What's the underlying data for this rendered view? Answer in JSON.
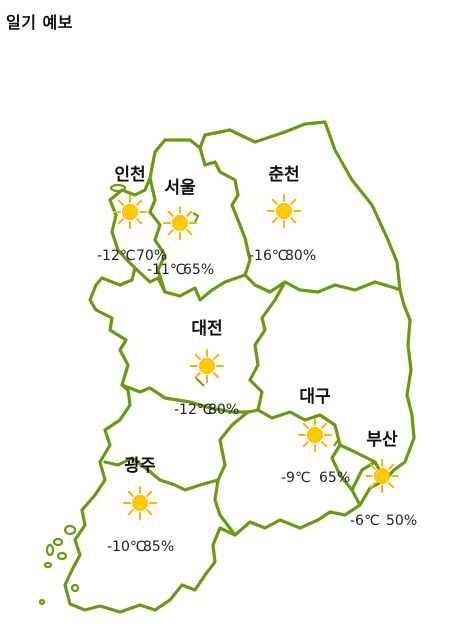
{
  "title": "일기 예보",
  "colors": {
    "border": "#6a9a10",
    "sun": "#ffcc00",
    "sun_ray": "#ffb300"
  },
  "regions": [
    {
      "id": "incheon",
      "city": "인천",
      "temp": "-12℃",
      "humidity": "70%",
      "weather_icon": "sun-icon"
    },
    {
      "id": "seoul",
      "city": "서울",
      "temp": "-11℃",
      "humidity": "65%",
      "weather_icon": "sun-icon"
    },
    {
      "id": "chuncheon",
      "city": "춘천",
      "temp": "-16℃",
      "humidity": "80%",
      "weather_icon": "sun-icon"
    },
    {
      "id": "daejeon",
      "city": "대전",
      "temp": "-12℃",
      "humidity": "80%",
      "weather_icon": "sun-icon"
    },
    {
      "id": "daegu",
      "city": "대구",
      "temp": "-9℃",
      "humidity": "65%",
      "weather_icon": "sun-icon"
    },
    {
      "id": "busan",
      "city": "부산",
      "temp": "-6℃",
      "humidity": "50%",
      "weather_icon": "sun-icon"
    },
    {
      "id": "gwangju",
      "city": "광주",
      "temp": "-10℃",
      "humidity": "85%",
      "weather_icon": "sun-icon"
    }
  ]
}
